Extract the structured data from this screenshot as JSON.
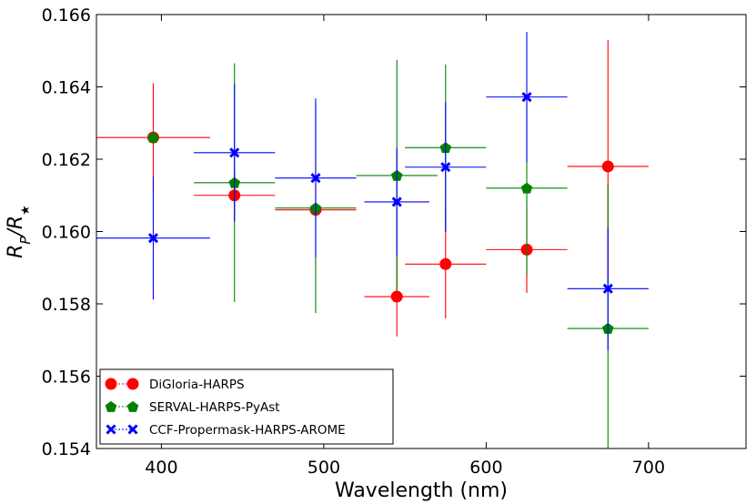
{
  "chart_data": {
    "type": "scatter",
    "title": "",
    "xlabel": "Wavelength (nm)",
    "ylabel_parts": {
      "base": "R",
      "sub": "P",
      "sep": "/R",
      "sub2": "★"
    },
    "xlim": [
      360,
      760
    ],
    "ylim": [
      0.154,
      0.166
    ],
    "xticks": [
      400,
      500,
      600,
      700
    ],
    "xtick_labels": [
      "400",
      "500",
      "600",
      "700"
    ],
    "yticks": [
      0.154,
      0.156,
      0.158,
      0.16,
      0.162,
      0.164,
      0.166
    ],
    "ytick_labels": [
      "0.154",
      "0.156",
      "0.158",
      "0.160",
      "0.162",
      "0.164",
      "0.166"
    ],
    "grid": false,
    "legend_position": "bottom-left",
    "series": [
      {
        "name": "DiGloria-HARPS",
        "color": "#ff0000",
        "marker": "circle",
        "points": [
          {
            "x": 395,
            "xerr": 35,
            "y": 0.1626,
            "yerr": 0.0015
          },
          {
            "x": 445,
            "xerr": 25,
            "y": 0.161,
            "yerr": 0.0007
          },
          {
            "x": 495,
            "xerr": 25,
            "y": 0.1606,
            "yerr": 0.0001
          },
          {
            "x": 545,
            "xerr": 20,
            "y": 0.1582,
            "yerr": 0.0011
          },
          {
            "x": 575,
            "xerr": 25,
            "y": 0.1591,
            "yerr": 0.0015
          },
          {
            "x": 625,
            "xerr": 25,
            "y": 0.1595,
            "yerr": 0.0012
          },
          {
            "x": 675,
            "xerr": 25,
            "y": 0.1618,
            "yerr": 0.0035
          }
        ]
      },
      {
        "name": "SERVAL-HARPS-PyAst",
        "color": "#008000",
        "marker": "pentagon",
        "points": [
          {
            "x": 395,
            "xerr": 0,
            "y": 0.1626,
            "yerr": 0.0
          },
          {
            "x": 445,
            "xerr": 25,
            "y": 0.16135,
            "yerr": 0.0033
          },
          {
            "x": 495,
            "xerr": 25,
            "y": 0.16065,
            "yerr": 0.0029
          },
          {
            "x": 545,
            "xerr": 25,
            "y": 0.16155,
            "yerr": 0.0032
          },
          {
            "x": 575,
            "xerr": 25,
            "y": 0.16232,
            "yerr": 0.0023
          },
          {
            "x": 625,
            "xerr": 25,
            "y": 0.1612,
            "yerr": 0.0024
          },
          {
            "x": 675,
            "xerr": 25,
            "y": 0.15732,
            "yerr": 0.004
          }
        ]
      },
      {
        "name": "CCF-Propermask-HARPS-AROME",
        "color": "#0000ff",
        "marker": "x",
        "points": [
          {
            "x": 395,
            "xerr": 35,
            "y": 0.15982,
            "yerr": 0.0017
          },
          {
            "x": 445,
            "xerr": 25,
            "y": 0.16218,
            "yerr": 0.0019
          },
          {
            "x": 495,
            "xerr": 25,
            "y": 0.16148,
            "yerr": 0.0022
          },
          {
            "x": 545,
            "xerr": 20,
            "y": 0.16082,
            "yerr": 0.0015
          },
          {
            "x": 575,
            "xerr": 25,
            "y": 0.16178,
            "yerr": 0.0018
          },
          {
            "x": 625,
            "xerr": 25,
            "y": 0.16372,
            "yerr": 0.0018
          },
          {
            "x": 675,
            "xerr": 25,
            "y": 0.15842,
            "yerr": 0.0017
          }
        ]
      }
    ]
  }
}
